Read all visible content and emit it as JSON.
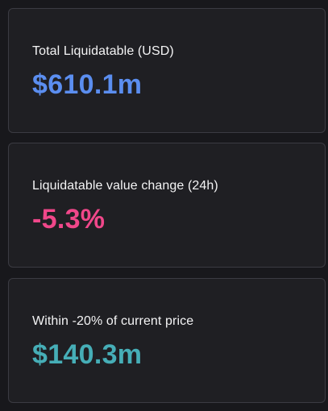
{
  "cards": [
    {
      "label": "Total Liquidatable (USD)",
      "value": "$610.1m",
      "value_color": "#5b8ef0"
    },
    {
      "label": "Liquidatable value change (24h)",
      "value": "-5.3%",
      "value_color": "#f0478a"
    },
    {
      "label": "Within -20% of current price",
      "value": "$140.3m",
      "value_color": "#46aeb7"
    }
  ]
}
